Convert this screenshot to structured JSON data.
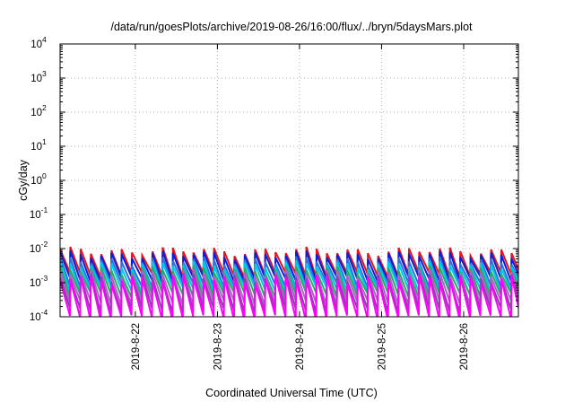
{
  "chart_data": {
    "type": "line",
    "title": "/data/run/goesPlots/archive/2019-08-26/16:00/flux/../bryn/5daysMars.plot",
    "xlabel": "Coordinated Universal Time (UTC)",
    "ylabel": "cGy/day",
    "yscale": "log",
    "ylim": [
      0.0001,
      10000
    ],
    "xlim": [
      "2019-08-21T02:00",
      "2019-08-26T16:00"
    ],
    "grid": true,
    "legend": "none",
    "x_ticks": [
      "2019-8-22",
      "2019-8-23",
      "2019-8-24",
      "2019-8-25",
      "2019-8-26"
    ],
    "y_ticks": [
      {
        "base": "10",
        "exp": "-4"
      },
      {
        "base": "10",
        "exp": "-3"
      },
      {
        "base": "10",
        "exp": "-2"
      },
      {
        "base": "10",
        "exp": "-1"
      },
      {
        "base": "10",
        "exp": "0"
      },
      {
        "base": "10",
        "exp": "1"
      },
      {
        "base": "10",
        "exp": "2"
      },
      {
        "base": "10",
        "exp": "3"
      },
      {
        "base": "10",
        "exp": "4"
      }
    ],
    "sawtooth": {
      "period_hours": 3,
      "start": "2019-08-21T02:00",
      "end": "2019-08-26T16:00"
    },
    "series": [
      {
        "color": "#e8141c",
        "peak": 0.0105,
        "trough": 0.002
      },
      {
        "color": "#0a1fd6",
        "peak": 0.0082,
        "trough": 0.0015
      },
      {
        "color": "#2f6fe0",
        "peak": 0.0055,
        "trough": 0.001
      },
      {
        "color": "#00c8e6",
        "peak": 0.0042,
        "trough": 0.00075
      },
      {
        "color": "#22b060",
        "peak": 0.003,
        "trough": 0.00052
      },
      {
        "color": "#b85ad0",
        "peak": 0.0024,
        "trough": 0.0003
      },
      {
        "color": "#7a4a9a",
        "peak": 0.0018,
        "trough": 0.00018
      },
      {
        "color": "#ff00ff",
        "peak": 0.0016,
        "trough": 0.00011
      }
    ]
  }
}
